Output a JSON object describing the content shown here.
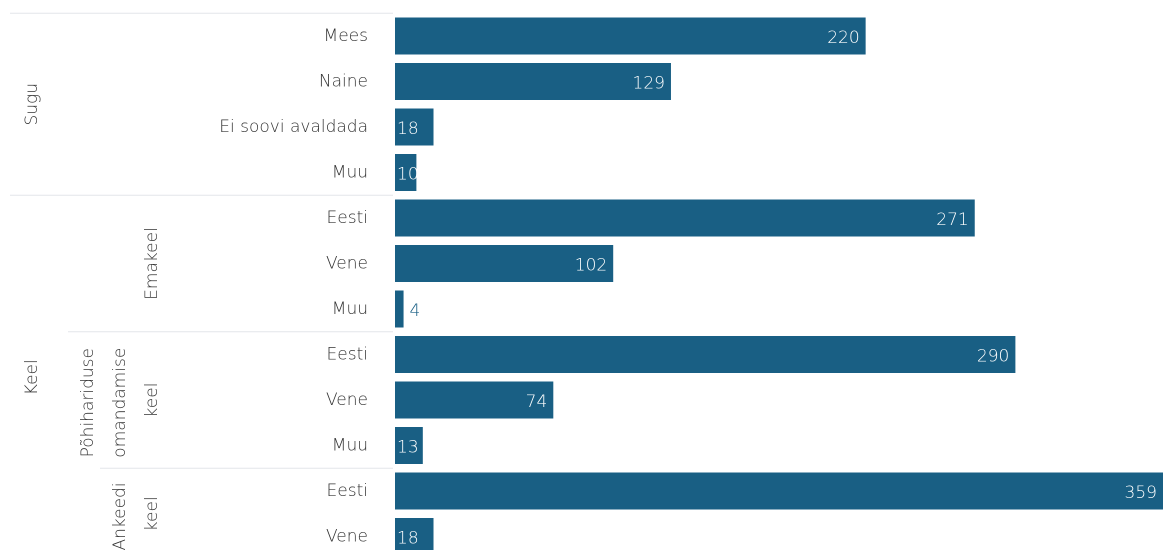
{
  "chart_data": {
    "type": "bar",
    "color": "#195f84",
    "groups": [
      {
        "name": "Sugu",
        "categories": [
          "Mees",
          "Naine",
          "Ei soovi avaldada",
          "Muu"
        ],
        "values": [
          220,
          129,
          18,
          10
        ]
      },
      {
        "name": "Keel",
        "subgroups": [
          {
            "name": "Emakeel",
            "categories": [
              "Eesti",
              "Vene",
              "Muu"
            ],
            "values": [
              271,
              102,
              4
            ]
          },
          {
            "name": "Põhihariduse omandamise keel",
            "categories": [
              "Eesti",
              "Vene",
              "Muu"
            ],
            "values": [
              290,
              74,
              13
            ]
          },
          {
            "name": "Ankeedi keel",
            "categories": [
              "Eesti",
              "Vene"
            ],
            "values": [
              359,
              18
            ]
          }
        ]
      }
    ]
  }
}
